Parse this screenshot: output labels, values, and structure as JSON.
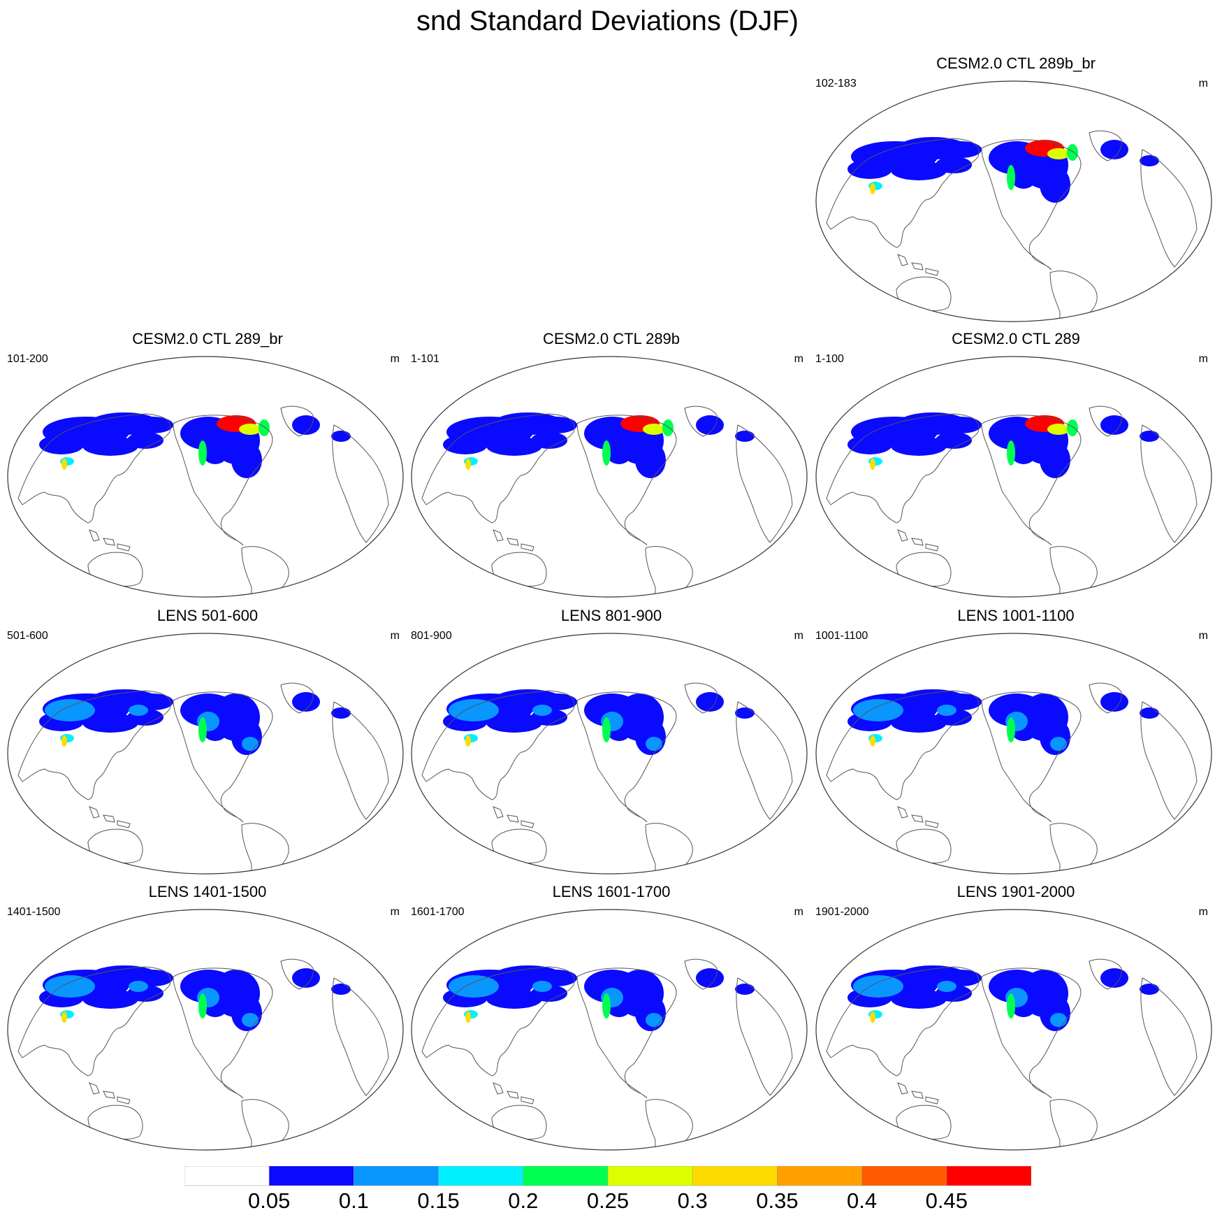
{
  "title": "snd Standard Deviations (DJF)",
  "panels": [
    {
      "title": "CESM2.0 CTL 289b_br",
      "years": "102-183",
      "unit": "m",
      "col": 2,
      "row": 0,
      "style": "cesm",
      "antarctic_hot": false
    },
    {
      "title": "CESM2.0 CTL 289_br",
      "years": "101-200",
      "unit": "m",
      "col": 0,
      "row": 1,
      "style": "cesm",
      "antarctic_hot": false
    },
    {
      "title": "CESM2.0 CTL 289b",
      "years": "1-101",
      "unit": "m",
      "col": 1,
      "row": 1,
      "style": "cesm",
      "antarctic_hot": true
    },
    {
      "title": "CESM2.0 CTL 289",
      "years": "1-100",
      "unit": "m",
      "col": 2,
      "row": 1,
      "style": "cesm",
      "antarctic_hot": true
    },
    {
      "title": "LENS 501-600",
      "years": "501-600",
      "unit": "m",
      "col": 0,
      "row": 2,
      "style": "lens",
      "antarctic_hot": false
    },
    {
      "title": "LENS 801-900",
      "years": "801-900",
      "unit": "m",
      "col": 1,
      "row": 2,
      "style": "lens",
      "antarctic_hot": false
    },
    {
      "title": "LENS 1001-1100",
      "years": "1001-1100",
      "unit": "m",
      "col": 2,
      "row": 2,
      "style": "lens",
      "antarctic_hot": false
    },
    {
      "title": "LENS 1401-1500",
      "years": "1401-1500",
      "unit": "m",
      "col": 0,
      "row": 3,
      "style": "lens",
      "antarctic_hot": false
    },
    {
      "title": "LENS 1601-1700",
      "years": "1601-1700",
      "unit": "m",
      "col": 1,
      "row": 3,
      "style": "lens",
      "antarctic_hot": false
    },
    {
      "title": "LENS 1901-2000",
      "years": "1901-2000",
      "unit": "m",
      "col": 2,
      "row": 3,
      "style": "lens",
      "antarctic_hot": false
    }
  ],
  "colorbar": {
    "labels": [
      "0.05",
      "0.1",
      "0.15",
      "0.2",
      "0.25",
      "0.3",
      "0.35",
      "0.4",
      "0.45"
    ],
    "colors": [
      "#ffffff",
      "#0a0aff",
      "#0a96ff",
      "#00f0ff",
      "#00ff50",
      "#dcff00",
      "#ffdc00",
      "#ffa000",
      "#ff5a00",
      "#ff0000"
    ]
  }
}
